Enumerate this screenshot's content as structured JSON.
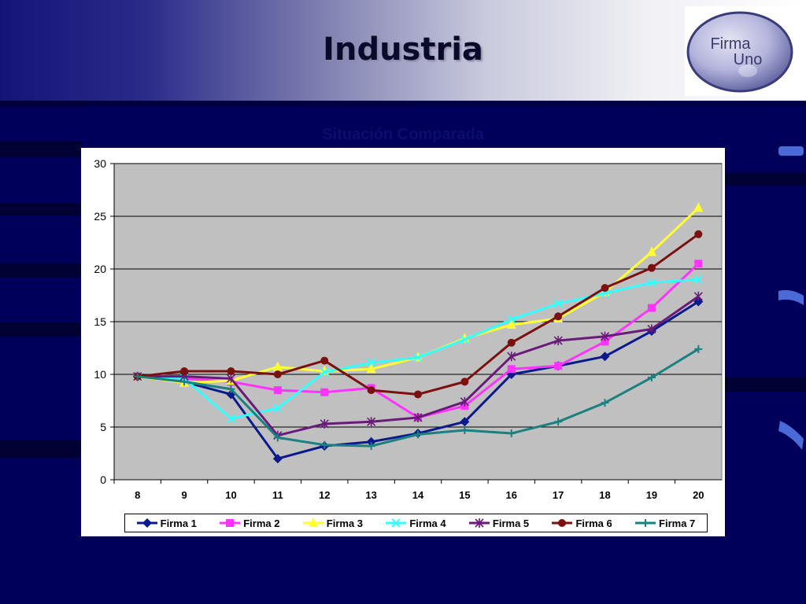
{
  "slide": {
    "title": "Industria",
    "subtitle": "Situación Comparada",
    "logo_line1": "Firma",
    "logo_line2": "Uno"
  },
  "colors": {
    "background": "#00005a",
    "plot_bg": "#c0c0c0",
    "grid": "#000000"
  },
  "chart_data": {
    "type": "line",
    "title": "",
    "xlabel": "",
    "ylabel": "",
    "x": [
      "8",
      "9",
      "10",
      "11",
      "12",
      "13",
      "14",
      "15",
      "16",
      "17",
      "18",
      "19",
      "20"
    ],
    "ylim": [
      0,
      30
    ],
    "yticks": [
      "0",
      "5",
      "10",
      "15",
      "20",
      "25",
      "30"
    ],
    "grid": true,
    "legend_position": "bottom",
    "series": [
      {
        "name": "Firma 1",
        "color": "#0a1a8c",
        "marker": "diamond",
        "values": [
          9.8,
          9.3,
          8.1,
          2.0,
          3.2,
          3.6,
          4.4,
          5.5,
          10.0,
          10.8,
          11.7,
          14.1,
          16.9
        ]
      },
      {
        "name": "Firma 2",
        "color": "#ff33ff",
        "marker": "square",
        "values": [
          9.8,
          9.6,
          9.3,
          8.5,
          8.3,
          8.7,
          5.9,
          7.0,
          10.5,
          10.8,
          13.1,
          16.3,
          20.5
        ]
      },
      {
        "name": "Firma 3",
        "color": "#ffff33",
        "marker": "triangle",
        "values": [
          9.8,
          9.2,
          9.4,
          10.7,
          10.3,
          10.5,
          11.6,
          13.4,
          14.7,
          15.3,
          17.8,
          21.6,
          25.8
        ]
      },
      {
        "name": "Firma 4",
        "color": "#33ffff",
        "marker": "x",
        "values": [
          9.8,
          9.6,
          5.8,
          6.8,
          10.2,
          11.1,
          11.6,
          13.3,
          15.2,
          16.7,
          17.7,
          18.7,
          19.0
        ]
      },
      {
        "name": "Firma 5",
        "color": "#6a1a7a",
        "marker": "star",
        "values": [
          9.8,
          9.8,
          9.6,
          4.2,
          5.3,
          5.5,
          5.9,
          7.4,
          11.7,
          13.2,
          13.6,
          14.3,
          17.4
        ]
      },
      {
        "name": "Firma 6",
        "color": "#7a1010",
        "marker": "circle",
        "values": [
          9.8,
          10.3,
          10.3,
          10.0,
          11.3,
          8.5,
          8.1,
          9.3,
          13.0,
          15.5,
          18.2,
          20.1,
          23.3
        ]
      },
      {
        "name": "Firma 7",
        "color": "#1a8080",
        "marker": "plus",
        "values": [
          9.8,
          9.3,
          8.6,
          4.0,
          3.3,
          3.2,
          4.3,
          4.7,
          4.4,
          5.5,
          7.3,
          9.7,
          12.4
        ]
      }
    ]
  }
}
